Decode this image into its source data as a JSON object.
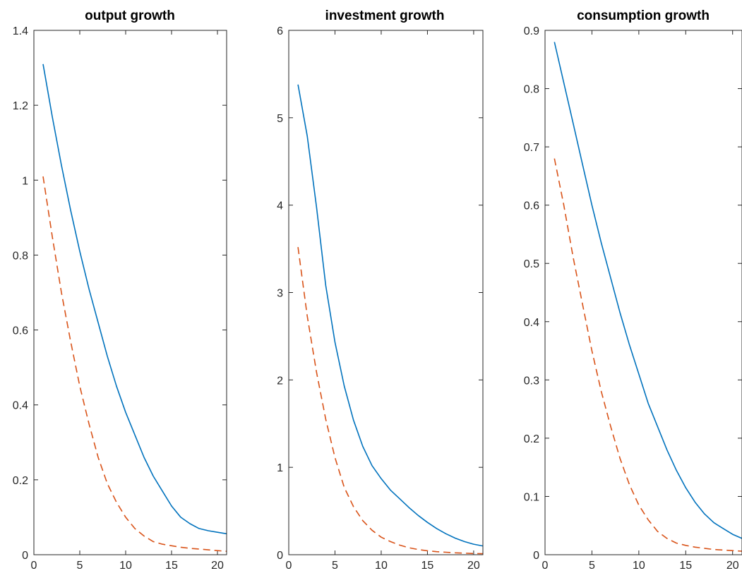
{
  "chart_data": [
    {
      "type": "line",
      "title": "output growth",
      "xlabel": "",
      "ylabel": "",
      "xlim": [
        0,
        21
      ],
      "ylim": [
        0,
        1.4
      ],
      "xticks": [
        0,
        5,
        10,
        15,
        20
      ],
      "yticks": [
        0,
        0.2,
        0.4,
        0.6,
        0.8,
        1,
        1.2,
        1.4
      ],
      "xtick_labels": [
        "0",
        "5",
        "10",
        "15",
        "20"
      ],
      "ytick_labels": [
        "0",
        "0.2",
        "0.4",
        "0.6",
        "0.8",
        "1",
        "1.2",
        "1.4"
      ],
      "grid": false,
      "x": [
        1,
        2,
        3,
        4,
        5,
        6,
        7,
        8,
        9,
        10,
        11,
        12,
        13,
        14,
        15,
        16,
        17,
        18,
        19,
        20,
        21
      ],
      "series": [
        {
          "style": "solid",
          "color": "#0072BD",
          "values": [
            1.31,
            1.17,
            1.04,
            0.92,
            0.81,
            0.71,
            0.62,
            0.53,
            0.45,
            0.38,
            0.32,
            0.26,
            0.21,
            0.17,
            0.13,
            0.1,
            0.083,
            0.07,
            0.064,
            0.06,
            0.056
          ]
        },
        {
          "style": "dashed",
          "color": "#D95319",
          "values": [
            1.01,
            0.85,
            0.7,
            0.57,
            0.45,
            0.35,
            0.26,
            0.19,
            0.14,
            0.1,
            0.07,
            0.05,
            0.035,
            0.028,
            0.024,
            0.02,
            0.017,
            0.015,
            0.013,
            0.011,
            0.009
          ]
        }
      ]
    },
    {
      "type": "line",
      "title": "investment growth",
      "xlabel": "",
      "ylabel": "",
      "xlim": [
        0,
        21
      ],
      "ylim": [
        0,
        6
      ],
      "xticks": [
        0,
        5,
        10,
        15,
        20
      ],
      "yticks": [
        0,
        1,
        2,
        3,
        4,
        5,
        6
      ],
      "xtick_labels": [
        "0",
        "5",
        "10",
        "15",
        "20"
      ],
      "ytick_labels": [
        "0",
        "1",
        "2",
        "3",
        "4",
        "5",
        "6"
      ],
      "grid": false,
      "x": [
        1,
        2,
        3,
        4,
        5,
        6,
        7,
        8,
        9,
        10,
        11,
        12,
        13,
        14,
        15,
        16,
        17,
        18,
        19,
        20,
        21
      ],
      "series": [
        {
          "style": "solid",
          "color": "#0072BD",
          "values": [
            5.38,
            4.79,
            3.98,
            3.08,
            2.43,
            1.93,
            1.54,
            1.24,
            1.02,
            0.87,
            0.74,
            0.64,
            0.54,
            0.45,
            0.37,
            0.3,
            0.24,
            0.19,
            0.15,
            0.12,
            0.1
          ]
        },
        {
          "style": "dashed",
          "color": "#D95319",
          "values": [
            3.52,
            2.73,
            2.09,
            1.55,
            1.11,
            0.77,
            0.55,
            0.39,
            0.28,
            0.2,
            0.15,
            0.11,
            0.08,
            0.06,
            0.045,
            0.035,
            0.028,
            0.022,
            0.018,
            0.014,
            0.012
          ]
        }
      ]
    },
    {
      "type": "line",
      "title": "consumption growth",
      "xlabel": "",
      "ylabel": "",
      "xlim": [
        0,
        21
      ],
      "ylim": [
        0,
        0.9
      ],
      "xticks": [
        0,
        5,
        10,
        15,
        20
      ],
      "yticks": [
        0,
        0.1,
        0.2,
        0.3,
        0.4,
        0.5,
        0.6,
        0.7,
        0.8,
        0.9
      ],
      "xtick_labels": [
        "0",
        "5",
        "10",
        "15",
        "20"
      ],
      "ytick_labels": [
        "0",
        "0.1",
        "0.2",
        "0.3",
        "0.4",
        "0.5",
        "0.6",
        "0.7",
        "0.8",
        "0.9"
      ],
      "grid": false,
      "x": [
        1,
        2,
        3,
        4,
        5,
        6,
        7,
        8,
        9,
        10,
        11,
        12,
        13,
        14,
        15,
        16,
        17,
        18,
        19,
        20,
        21
      ],
      "series": [
        {
          "style": "solid",
          "color": "#0072BD",
          "values": [
            0.88,
            0.81,
            0.74,
            0.67,
            0.6,
            0.535,
            0.475,
            0.415,
            0.36,
            0.31,
            0.26,
            0.22,
            0.18,
            0.145,
            0.115,
            0.09,
            0.07,
            0.055,
            0.045,
            0.035,
            0.028
          ]
        },
        {
          "style": "dashed",
          "color": "#D95319",
          "values": [
            0.68,
            0.6,
            0.51,
            0.43,
            0.35,
            0.28,
            0.22,
            0.165,
            0.12,
            0.085,
            0.06,
            0.04,
            0.028,
            0.02,
            0.016,
            0.013,
            0.011,
            0.009,
            0.008,
            0.007,
            0.006
          ]
        }
      ]
    }
  ]
}
